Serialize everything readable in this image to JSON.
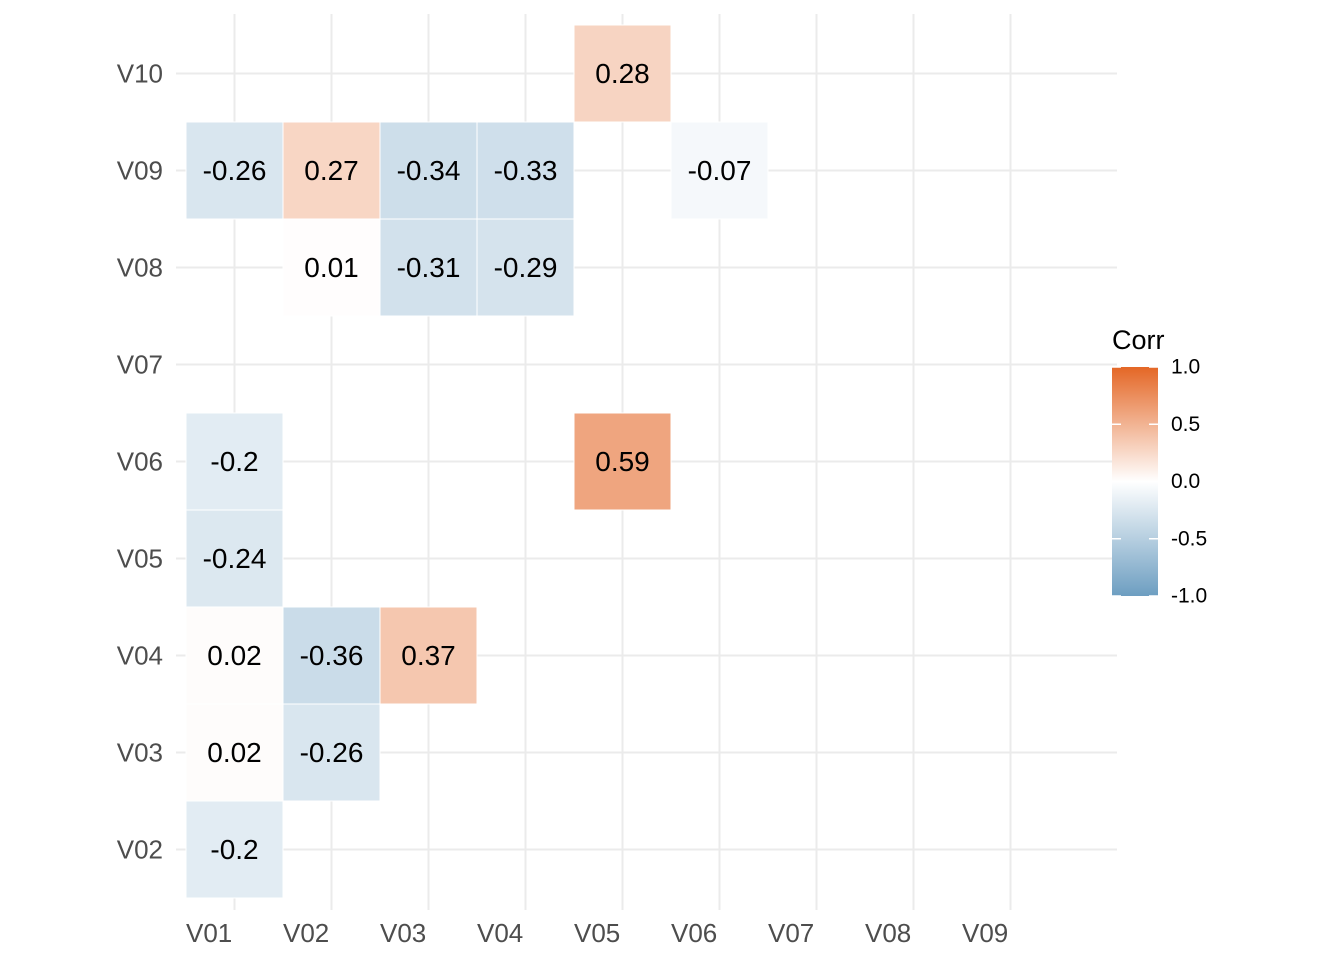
{
  "chart_data": {
    "type": "heatmap",
    "x_categories": [
      "V01",
      "V02",
      "V03",
      "V04",
      "V05",
      "V06",
      "V07",
      "V08",
      "V09"
    ],
    "y_categories": [
      "V02",
      "V03",
      "V04",
      "V05",
      "V06",
      "V07",
      "V08",
      "V09",
      "V10"
    ],
    "cells": [
      {
        "x": "V05",
        "y": "V10",
        "value": 0.28,
        "label": "0.28"
      },
      {
        "x": "V01",
        "y": "V09",
        "value": -0.26,
        "label": "-0.26"
      },
      {
        "x": "V02",
        "y": "V09",
        "value": 0.27,
        "label": "0.27"
      },
      {
        "x": "V03",
        "y": "V09",
        "value": -0.34,
        "label": "-0.34"
      },
      {
        "x": "V04",
        "y": "V09",
        "value": -0.33,
        "label": "-0.33"
      },
      {
        "x": "V06",
        "y": "V09",
        "value": -0.07,
        "label": "-0.07"
      },
      {
        "x": "V02",
        "y": "V08",
        "value": 0.01,
        "label": "0.01"
      },
      {
        "x": "V03",
        "y": "V08",
        "value": -0.31,
        "label": "-0.31"
      },
      {
        "x": "V04",
        "y": "V08",
        "value": -0.29,
        "label": "-0.29"
      },
      {
        "x": "V01",
        "y": "V06",
        "value": -0.2,
        "label": "-0.2"
      },
      {
        "x": "V05",
        "y": "V06",
        "value": 0.59,
        "label": "0.59"
      },
      {
        "x": "V01",
        "y": "V05",
        "value": -0.24,
        "label": "-0.24"
      },
      {
        "x": "V01",
        "y": "V04",
        "value": 0.02,
        "label": "0.02"
      },
      {
        "x": "V02",
        "y": "V04",
        "value": -0.36,
        "label": "-0.36"
      },
      {
        "x": "V03",
        "y": "V04",
        "value": 0.37,
        "label": "0.37"
      },
      {
        "x": "V01",
        "y": "V03",
        "value": 0.02,
        "label": "0.02"
      },
      {
        "x": "V02",
        "y": "V03",
        "value": -0.26,
        "label": "-0.26"
      },
      {
        "x": "V01",
        "y": "V02",
        "value": -0.2,
        "label": "-0.2"
      }
    ],
    "legend": {
      "title": "Corr",
      "ticks": [
        "1.0",
        "0.5",
        "0.0",
        "-0.5",
        "-1.0"
      ],
      "tick_values": [
        1.0,
        0.5,
        0.0,
        -0.5,
        -1.0
      ],
      "range": [
        -1,
        1
      ],
      "placement": "right"
    },
    "colors": {
      "low": "#6d9ec1",
      "mid": "#ffffff",
      "high": "#e46726",
      "grid": "#ebebeb",
      "tile_border": "#ffffff"
    },
    "grid": true
  }
}
